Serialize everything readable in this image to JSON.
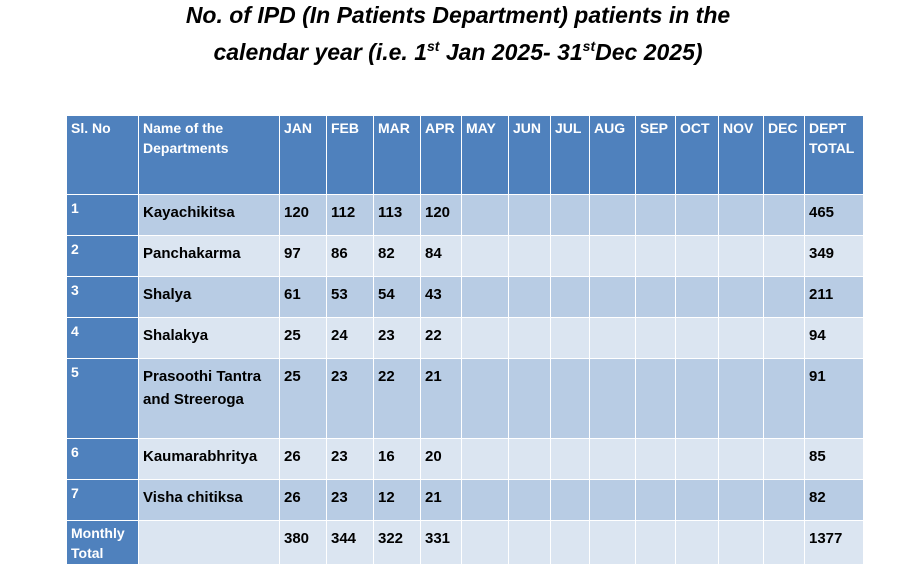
{
  "title": {
    "line1": "No. of IPD (In Patients Department) patients in the",
    "line2_prefix": "calendar year (i.e. 1",
    "line2_sup1": "st",
    "line2_mid": " Jan 2025- 31",
    "line2_sup2": "st",
    "line2_suffix": "Dec 2025)"
  },
  "table": {
    "headers": {
      "sl": "Sl. No",
      "dept": "Name of the Departments",
      "months": [
        "JAN",
        "FEB",
        "MAR",
        "APR",
        "MAY",
        "JUN",
        "JUL",
        "AUG",
        "SEP",
        "OCT",
        "NOV",
        "DEC"
      ],
      "total": "DEPT TOTAL"
    },
    "rows": [
      {
        "sl": "1",
        "dept": "Kayachikitsa",
        "values": [
          "120",
          "112",
          "113",
          "120",
          "",
          "",
          "",
          "",
          "",
          "",
          "",
          ""
        ],
        "total": "465"
      },
      {
        "sl": "2",
        "dept": "Panchakarma",
        "values": [
          "97",
          "86",
          "82",
          "84",
          "",
          "",
          "",
          "",
          "",
          "",
          "",
          ""
        ],
        "total": "349"
      },
      {
        "sl": "3",
        "dept": "Shalya",
        "values": [
          "61",
          "53",
          "54",
          "43",
          "",
          "",
          "",
          "",
          "",
          "",
          "",
          ""
        ],
        "total": "211"
      },
      {
        "sl": "4",
        "dept": "Shalakya",
        "values": [
          "25",
          "24",
          "23",
          "22",
          "",
          "",
          "",
          "",
          "",
          "",
          "",
          ""
        ],
        "total": "94"
      },
      {
        "sl": "5",
        "dept": "Prasoothi Tantra and Streeroga",
        "values": [
          "25",
          "23",
          "22",
          "21",
          "",
          "",
          "",
          "",
          "",
          "",
          "",
          ""
        ],
        "total": "91"
      },
      {
        "sl": "6",
        "dept": "Kaumarabhritya",
        "values": [
          "26",
          "23",
          "16",
          "20",
          "",
          "",
          "",
          "",
          "",
          "",
          "",
          ""
        ],
        "total": "85"
      },
      {
        "sl": "7",
        "dept": "Visha chitiksa",
        "values": [
          "26",
          "23",
          "12",
          "21",
          "",
          "",
          "",
          "",
          "",
          "",
          "",
          ""
        ],
        "total": "82"
      }
    ],
    "monthly_total": {
      "label": "Monthly Total",
      "dept": "",
      "values": [
        "380",
        "344",
        "322",
        "331",
        "",
        "",
        "",
        "",
        "",
        "",
        "",
        ""
      ],
      "total": "1377"
    }
  }
}
